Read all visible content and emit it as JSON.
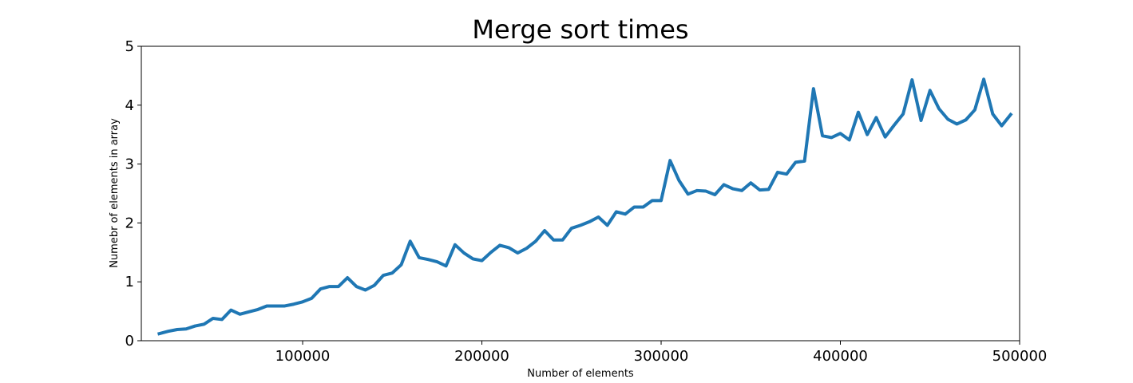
{
  "chart_data": {
    "type": "line",
    "title": "Merge sort times",
    "xlabel": "Number of elements",
    "ylabel": "Numebr of elements in array",
    "xlim": [
      10000,
      500000
    ],
    "ylim": [
      0,
      5
    ],
    "x_ticks": [
      100000,
      200000,
      300000,
      400000,
      500000
    ],
    "x_tick_labels": [
      "100000",
      "200000",
      "300000",
      "400000",
      "500000"
    ],
    "y_ticks": [
      0,
      1,
      2,
      3,
      4,
      5
    ],
    "y_tick_labels": [
      "0",
      "1",
      "2",
      "3",
      "4",
      "5"
    ],
    "grid": false,
    "series": [
      {
        "color": "#1f77b4",
        "x": [
          20000,
          25000,
          30000,
          35000,
          40000,
          45000,
          50000,
          55000,
          60000,
          65000,
          70000,
          75000,
          80000,
          85000,
          90000,
          95000,
          100000,
          105000,
          110000,
          115000,
          120000,
          125000,
          130000,
          135000,
          140000,
          145000,
          150000,
          155000,
          160000,
          165000,
          170000,
          175000,
          180000,
          185000,
          190000,
          195000,
          200000,
          205000,
          210000,
          215000,
          220000,
          225000,
          230000,
          235000,
          240000,
          245000,
          250000,
          255000,
          260000,
          265000,
          270000,
          275000,
          280000,
          285000,
          290000,
          295000,
          300000,
          305000,
          310000,
          315000,
          320000,
          325000,
          330000,
          335000,
          340000,
          345000,
          350000,
          355000,
          360000,
          365000,
          370000,
          375000,
          380000,
          385000,
          390000,
          395000,
          400000,
          405000,
          410000,
          415000,
          420000,
          425000,
          430000,
          435000,
          440000,
          445000,
          450000,
          455000,
          460000,
          465000,
          470000,
          475000,
          480000,
          485000,
          490000,
          495000
        ],
        "y": [
          0.12,
          0.16,
          0.19,
          0.2,
          0.25,
          0.28,
          0.38,
          0.36,
          0.52,
          0.45,
          0.49,
          0.53,
          0.59,
          0.59,
          0.59,
          0.62,
          0.66,
          0.72,
          0.88,
          0.92,
          0.92,
          1.07,
          0.92,
          0.86,
          0.94,
          1.11,
          1.15,
          1.29,
          1.69,
          1.41,
          1.38,
          1.34,
          1.27,
          1.63,
          1.49,
          1.39,
          1.36,
          1.5,
          1.62,
          1.58,
          1.49,
          1.57,
          1.69,
          1.87,
          1.71,
          1.71,
          1.91,
          1.96,
          2.02,
          2.1,
          1.96,
          2.19,
          2.15,
          2.27,
          2.27,
          2.38,
          2.38,
          3.06,
          2.72,
          2.49,
          2.55,
          2.54,
          2.48,
          2.65,
          2.58,
          2.55,
          2.68,
          2.56,
          2.57,
          2.86,
          2.83,
          3.03,
          3.05,
          4.28,
          3.48,
          3.45,
          3.52,
          3.41,
          3.88,
          3.5,
          3.79,
          3.46,
          3.66,
          3.85,
          4.43,
          3.74,
          4.25,
          3.94,
          3.76,
          3.68,
          3.75,
          3.92,
          4.44,
          3.85,
          3.65,
          3.84
        ]
      }
    ]
  }
}
